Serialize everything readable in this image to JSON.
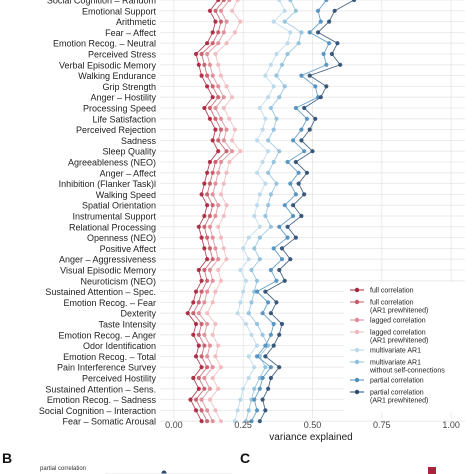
{
  "chart_data": {
    "type": "line",
    "xlabel": "variance explained",
    "ylabel": "",
    "xlim": [
      -0.05,
      1.05
    ],
    "x_ticks": [
      "0.00",
      "0.25",
      "0.50",
      "0.75",
      "1.00"
    ],
    "x_tick_values": [
      0,
      0.25,
      0.5,
      0.75,
      1.0
    ],
    "grid": true,
    "orientation": "horizontal",
    "legend_position": "right",
    "categories": [
      "Social Cognition – Random",
      "Emotional Support",
      "Arithmetic",
      "Fear – Affect",
      "Emotion Recog. – Neutral",
      "Perceived Stress",
      "Verbal Episodic Memory",
      "Walking Endurance",
      "Grip Strength",
      "Anger – Hostility",
      "Processing Speed",
      "Life Satisfaction",
      "Perceived Rejection",
      "Sadness",
      "Sleep Quality",
      "Agreeableness (NEO)",
      "Anger – Affect",
      "Inhibition (Flanker Task)l",
      "Walking Speed",
      "Spatial Orientation",
      "Instrumental Support",
      "Relational Processing",
      "Openness (NEO)",
      "Positive Affect",
      "Anger – Aggressiveness",
      "Visual Episodic Memory",
      "Neuroticism (NEO)",
      "Sustained Attention – Spec.",
      "Emotion Recog. – Fear",
      "Dexterity",
      "Taste Intensity",
      "Emotion Recog. – Anger",
      "Odor Identification",
      "Emotion Recog. – Total",
      "Pain Interference Survey",
      "Perceived Hostility",
      "Sustained Attention – Sens.",
      "Emotion Recog. – Sadness",
      "Social Cognition – Interaction",
      "Fear – Somatic Arousal"
    ],
    "series": [
      {
        "name": "full correlation",
        "color": "#a8243a",
        "values": [
          0.16,
          0.13,
          0.15,
          0.14,
          0.12,
          0.08,
          0.09,
          0.1,
          0.12,
          0.14,
          0.11,
          0.13,
          0.15,
          0.14,
          0.16,
          0.13,
          0.12,
          0.11,
          0.1,
          0.12,
          0.11,
          0.09,
          0.1,
          0.11,
          0.12,
          0.09,
          0.1,
          0.08,
          0.07,
          0.05,
          0.08,
          0.07,
          0.09,
          0.08,
          0.1,
          0.07,
          0.09,
          0.06,
          0.08,
          0.1
        ]
      },
      {
        "name": "full correlation\n(AR1 prewhitened)",
        "color": "#c45a68",
        "values": [
          0.18,
          0.15,
          0.17,
          0.16,
          0.14,
          0.1,
          0.11,
          0.12,
          0.14,
          0.16,
          0.13,
          0.15,
          0.17,
          0.16,
          0.19,
          0.15,
          0.14,
          0.13,
          0.12,
          0.14,
          0.13,
          0.11,
          0.12,
          0.13,
          0.14,
          0.11,
          0.12,
          0.1,
          0.09,
          0.07,
          0.1,
          0.09,
          0.11,
          0.1,
          0.12,
          0.09,
          0.11,
          0.08,
          0.1,
          0.12
        ]
      },
      {
        "name": "lagged correlation",
        "color": "#dd8a93",
        "values": [
          0.2,
          0.17,
          0.19,
          0.18,
          0.16,
          0.12,
          0.13,
          0.14,
          0.16,
          0.18,
          0.15,
          0.17,
          0.19,
          0.18,
          0.21,
          0.17,
          0.16,
          0.15,
          0.14,
          0.16,
          0.15,
          0.13,
          0.14,
          0.15,
          0.16,
          0.13,
          0.14,
          0.12,
          0.11,
          0.09,
          0.12,
          0.11,
          0.13,
          0.12,
          0.14,
          0.11,
          0.13,
          0.1,
          0.12,
          0.14
        ]
      },
      {
        "name": "lagged correlation\n(AR1 prewhitened)",
        "color": "#efb8bd",
        "values": [
          0.23,
          0.21,
          0.24,
          0.22,
          0.19,
          0.15,
          0.16,
          0.17,
          0.19,
          0.21,
          0.18,
          0.2,
          0.22,
          0.21,
          0.24,
          0.2,
          0.19,
          0.18,
          0.17,
          0.19,
          0.18,
          0.16,
          0.17,
          0.18,
          0.19,
          0.16,
          0.17,
          0.15,
          0.14,
          0.12,
          0.15,
          0.14,
          0.16,
          0.15,
          0.17,
          0.14,
          0.16,
          0.13,
          0.15,
          0.17
        ]
      },
      {
        "name": "multivariate AR1",
        "color": "#b9d8ea",
        "values": [
          0.38,
          0.4,
          0.36,
          0.42,
          0.41,
          0.37,
          0.35,
          0.33,
          0.36,
          0.34,
          0.31,
          0.33,
          0.32,
          0.3,
          0.34,
          0.32,
          0.3,
          0.33,
          0.31,
          0.3,
          0.29,
          0.31,
          0.27,
          0.25,
          0.27,
          0.24,
          0.26,
          0.25,
          0.24,
          0.23,
          0.26,
          0.28,
          0.3,
          0.27,
          0.29,
          0.27,
          0.25,
          0.24,
          0.23,
          0.22
        ]
      },
      {
        "name": "multivariate AR1\nwithout self-connections",
        "color": "#8ec0dd",
        "values": [
          0.42,
          0.44,
          0.4,
          0.46,
          0.45,
          0.41,
          0.39,
          0.37,
          0.4,
          0.38,
          0.35,
          0.37,
          0.36,
          0.34,
          0.38,
          0.36,
          0.34,
          0.37,
          0.35,
          0.34,
          0.33,
          0.35,
          0.31,
          0.29,
          0.31,
          0.28,
          0.3,
          0.29,
          0.28,
          0.27,
          0.3,
          0.32,
          0.34,
          0.31,
          0.33,
          0.31,
          0.29,
          0.28,
          0.27,
          0.26
        ]
      },
      {
        "name": "partial correlation",
        "color": "#4e8fbf",
        "values": [
          0.55,
          0.52,
          0.53,
          0.49,
          0.56,
          0.54,
          0.55,
          0.46,
          0.51,
          0.52,
          0.44,
          0.48,
          0.46,
          0.43,
          0.47,
          0.41,
          0.45,
          0.42,
          0.44,
          0.4,
          0.43,
          0.38,
          0.41,
          0.36,
          0.39,
          0.35,
          0.37,
          0.3,
          0.34,
          0.32,
          0.36,
          0.35,
          0.33,
          0.3,
          0.35,
          0.32,
          0.31,
          0.29,
          0.3,
          0.28
        ]
      },
      {
        "name": "partial correlation\n(AR1 prewhitened)",
        "color": "#2b4d72",
        "values": [
          0.65,
          0.58,
          0.56,
          0.52,
          0.59,
          0.57,
          0.6,
          0.49,
          0.55,
          0.53,
          0.47,
          0.51,
          0.49,
          0.46,
          0.5,
          0.44,
          0.48,
          0.45,
          0.47,
          0.43,
          0.46,
          0.41,
          0.44,
          0.39,
          0.42,
          0.38,
          0.4,
          0.33,
          0.37,
          0.35,
          0.39,
          0.38,
          0.36,
          0.33,
          0.38,
          0.35,
          0.34,
          0.32,
          0.33,
          0.31
        ]
      }
    ]
  },
  "panels": {
    "b_label": "B",
    "c_label": "C",
    "b_first_row": "partial correlation"
  },
  "colors": {
    "grid": "#e6e6e6",
    "panel_c_swatch": "#a8243a"
  }
}
